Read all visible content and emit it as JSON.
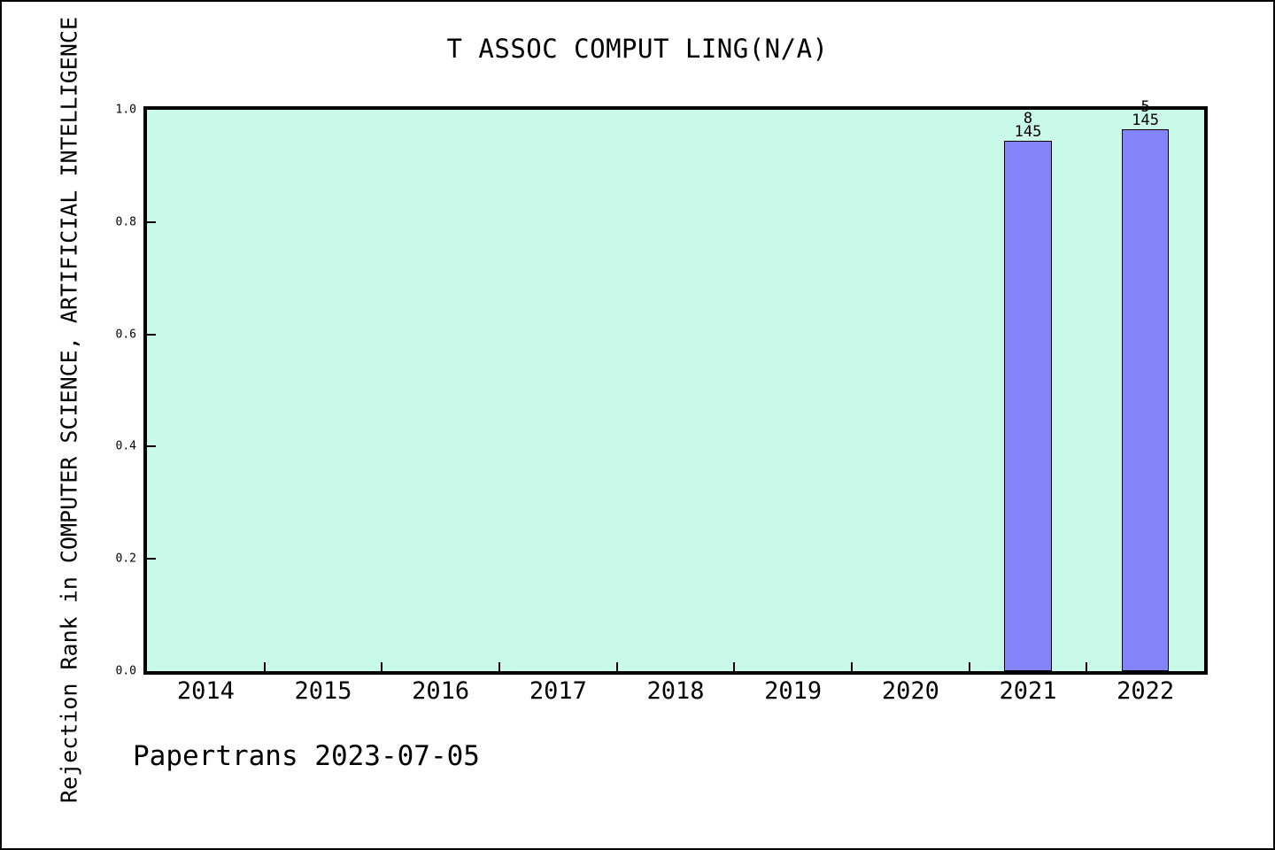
{
  "page": {
    "background": "#ffffff",
    "border_color": "#000000"
  },
  "footer": {
    "text": "Papertrans 2023-07-05"
  },
  "chart_data": {
    "type": "bar",
    "title": "T ASSOC COMPUT LING(N/A)",
    "xlabel": "",
    "ylabel": "Rejection Rank in COMPUTER SCIENCE, ARTIFICIAL INTELLIGENCE",
    "categories": [
      "2014",
      "2015",
      "2016",
      "2017",
      "2018",
      "2019",
      "2020",
      "2021",
      "2022"
    ],
    "values": [
      null,
      null,
      null,
      null,
      null,
      null,
      null,
      0.9448,
      0.9655
    ],
    "bars": [
      {
        "category": "2021",
        "value": 0.9448,
        "label_numerator": "8",
        "label_denominator": "145"
      },
      {
        "category": "2022",
        "value": 0.9655,
        "label_numerator": "5",
        "label_denominator": "145"
      }
    ],
    "ylim": [
      0.0,
      1.0
    ],
    "ytick_labels": [
      "0.0",
      "0.2",
      "0.4",
      "0.6",
      "0.8",
      "1.0"
    ],
    "grid": false,
    "legend": "none",
    "plot_bg_color": "#c9f9e9",
    "bar_color": "#8484fa",
    "bar_edge_color": "#000000",
    "bar_width_frac": 0.4
  }
}
